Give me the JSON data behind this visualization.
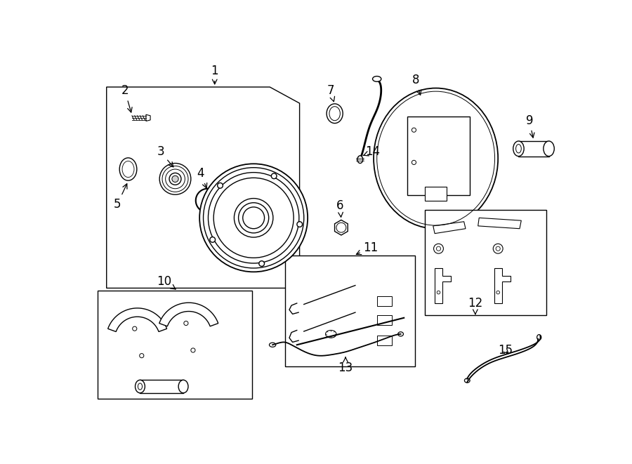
{
  "bg": "#ffffff",
  "lc": "#000000",
  "lw": 1.0,
  "fig_w": 9.0,
  "fig_h": 6.61,
  "dpi": 100,
  "label_fs": 12
}
